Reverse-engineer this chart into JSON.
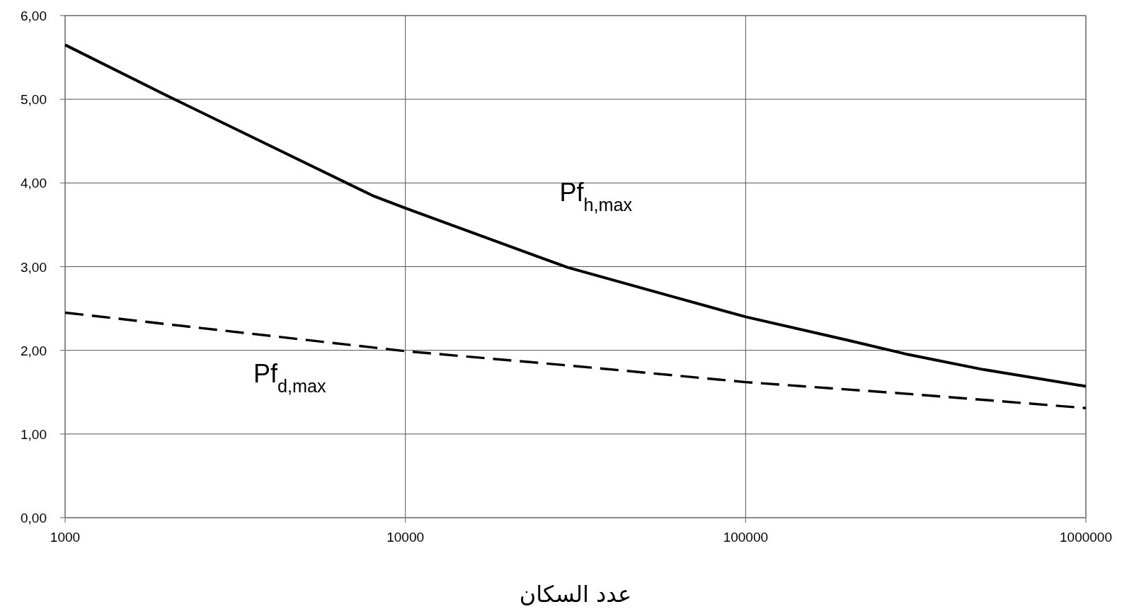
{
  "chart_data": {
    "type": "line",
    "xlabel": "عدد السكان",
    "log": "x",
    "grid": true,
    "legend": false,
    "marker": "none",
    "xlim": [
      1000,
      1000000
    ],
    "ylim": [
      0,
      6
    ],
    "xticks": [
      1000,
      10000,
      100000,
      1000000
    ],
    "yticks": [
      {
        "value": 0,
        "label": "0,00"
      },
      {
        "value": 1,
        "label": "1,00"
      },
      {
        "value": 2,
        "label": "2,00"
      },
      {
        "value": 3,
        "label": "3,00"
      },
      {
        "value": 4,
        "label": "4,00"
      },
      {
        "value": 5,
        "label": "5,00"
      },
      {
        "value": 6,
        "label": "6,00"
      }
    ],
    "series": [
      {
        "name": "Pf$_{h,max}$",
        "color": "#000000",
        "line_style": "solid",
        "x": [
          1000,
          2000,
          8000,
          10000,
          30000,
          60000,
          100000,
          200000,
          300000,
          500000,
          1000000
        ],
        "values": [
          5.65,
          5.04,
          3.85,
          3.7,
          2.99,
          2.65,
          2.4,
          2.12,
          1.95,
          1.77,
          1.57
        ]
      },
      {
        "name": "Pf$_{d,max}$",
        "color": "#000000",
        "line_style": "dashed",
        "x": [
          1000,
          10000,
          30000,
          100000,
          300000,
          1000000
        ],
        "values": [
          2.45,
          1.99,
          1.82,
          1.62,
          1.48,
          1.31
        ]
      }
    ]
  }
}
